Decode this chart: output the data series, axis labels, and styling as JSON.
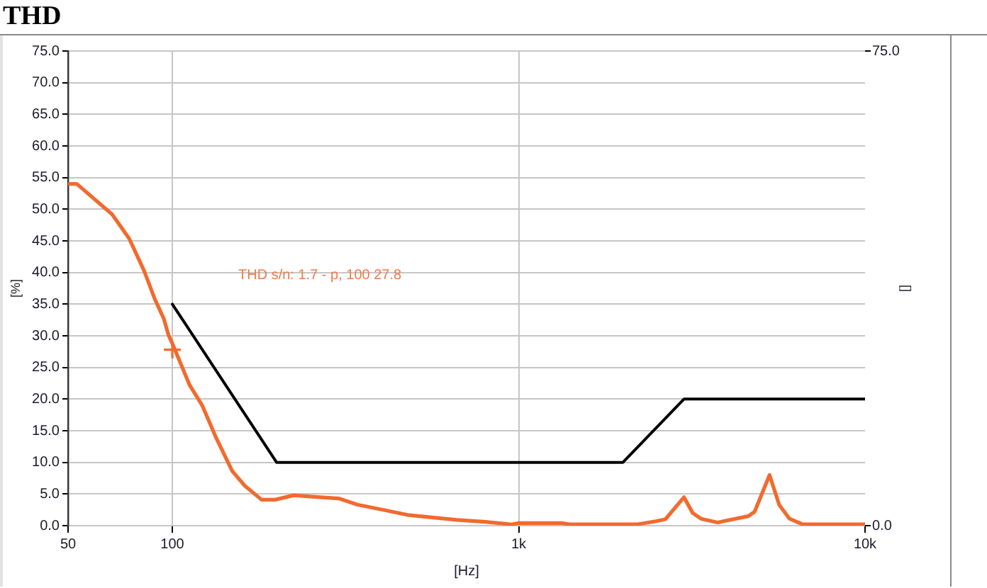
{
  "chart_data": {
    "type": "line",
    "title": "THD",
    "xlabel": "[Hz]",
    "ylabel": "[%]",
    "y2label": "[]",
    "log": "x",
    "grid": true,
    "xlim": [
      50,
      10000
    ],
    "xticks": [
      50,
      100,
      {
        "value": 1000,
        "label": "1k"
      },
      {
        "value": 10000,
        "label": "10k"
      }
    ],
    "ylim": [
      0,
      75
    ],
    "yticks": [
      {
        "value": 0,
        "label": "0.0"
      },
      {
        "value": 5,
        "label": "5.0"
      },
      {
        "value": 10,
        "label": "10.0"
      },
      {
        "value": 15,
        "label": "15.0"
      },
      {
        "value": 20,
        "label": "20.0"
      },
      {
        "value": 25,
        "label": "25.0"
      },
      {
        "value": 30,
        "label": "30.0"
      },
      {
        "value": 35,
        "label": "35.0"
      },
      {
        "value": 40,
        "label": "40.0"
      },
      {
        "value": 45,
        "label": "45.0"
      },
      {
        "value": 50,
        "label": "50.0"
      },
      {
        "value": 55,
        "label": "55.0"
      },
      {
        "value": 60,
        "label": "60.0"
      },
      {
        "value": 65,
        "label": "65.0"
      },
      {
        "value": 70,
        "label": "70.0"
      },
      {
        "value": 75,
        "label": "75.0"
      }
    ],
    "y2lim": [
      0,
      75
    ],
    "y2ticks": [
      {
        "value": 0,
        "label": "0.0"
      },
      {
        "value": 75,
        "label": "75.0"
      }
    ],
    "series": [
      {
        "color": "#f26a2e",
        "x": [
          50,
          53,
          67,
          75,
          83,
          89,
          94.5,
          97.5,
          100,
          105,
          112,
          122,
          134,
          149,
          162,
          181,
          198,
          224,
          250,
          302,
          343,
          414,
          477,
          663,
          802,
          955,
          1000,
          1330,
          1410,
          2190,
          2490,
          2650,
          3000,
          3180,
          3360,
          3750,
          4600,
          4800,
          5300,
          5650,
          6050,
          6610,
          10000
        ],
        "values": [
          54,
          54,
          49.2,
          45.4,
          40.2,
          35.8,
          32.7,
          30.1,
          28.8,
          26,
          22.3,
          19,
          13.8,
          8.6,
          6.3,
          4.1,
          4.1,
          4.8,
          4.6,
          4.3,
          3.3,
          2.4,
          1.7,
          0.9,
          0.6,
          0.2,
          0.4,
          0.4,
          0.2,
          0.2,
          0.7,
          1.0,
          4.5,
          2.0,
          1.1,
          0.5,
          1.5,
          2.2,
          8.0,
          3.3,
          1.1,
          0.2,
          0.2
        ]
      },
      {
        "color": "#000000",
        "x": [
          100,
          200,
          2000,
          3000,
          10000
        ],
        "values": [
          35,
          10,
          10,
          20,
          20
        ]
      },
      {
        "type": "scatter",
        "color": "#f26a2e",
        "marker": "cross",
        "x": [
          100
        ],
        "values": [
          27.8
        ]
      }
    ],
    "annotations": [
      "THD s/n: 1.7 - p, 100 27.8"
    ]
  }
}
